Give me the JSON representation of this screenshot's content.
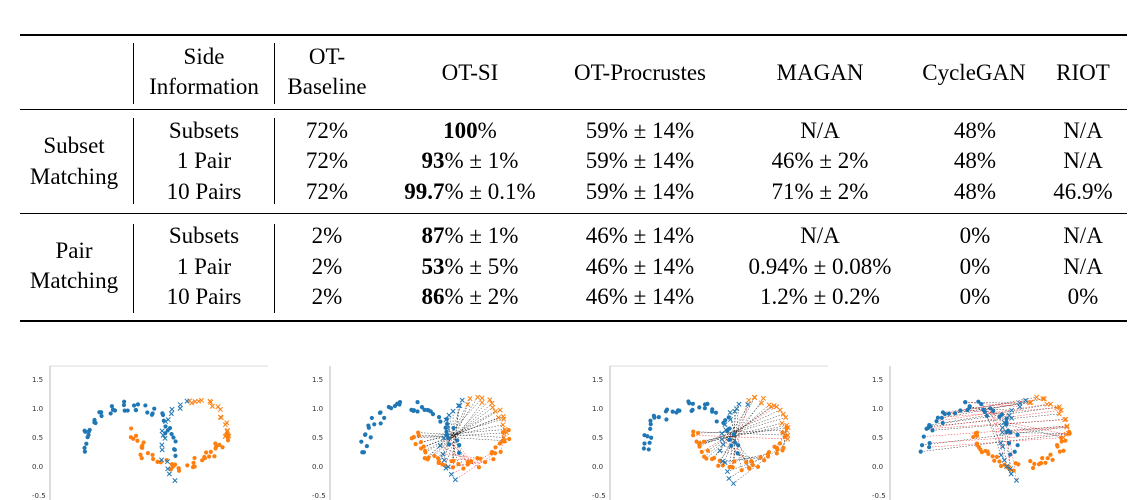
{
  "table": {
    "header": {
      "side_info_line1": "Side",
      "side_info_line2": "Information",
      "ot_baseline_line1": "OT-",
      "ot_baseline_line2": "Baseline",
      "ot_si": "OT-SI",
      "ot_procrustes": "OT-Procrustes",
      "magan": "MAGAN",
      "cyclegan": "CycleGAN",
      "riot": "RIOT"
    },
    "groups": [
      {
        "label_line1": "Subset",
        "label_line2": "Matching",
        "rows": [
          {
            "side": "Subsets",
            "baseline": "72%",
            "otsi_bold": "100",
            "otsi_rest": "%",
            "procrustes": "59% ± 14%",
            "magan": "N/A",
            "cyclegan": "48%",
            "riot": "N/A"
          },
          {
            "side": "1 Pair",
            "baseline": "72%",
            "otsi_bold": "93",
            "otsi_rest": "% ± 1%",
            "procrustes": "59% ± 14%",
            "magan": "46% ± 2%",
            "cyclegan": "48%",
            "riot": "N/A"
          },
          {
            "side": "10 Pairs",
            "baseline": "72%",
            "otsi_bold": "99.7",
            "otsi_rest": "% ± 0.1%",
            "procrustes": "59% ± 14%",
            "magan": "71% ± 2%",
            "cyclegan": "48%",
            "riot": "46.9%"
          }
        ]
      },
      {
        "label_line1": "Pair",
        "label_line2": "Matching",
        "rows": [
          {
            "side": "Subsets",
            "baseline": "2%",
            "otsi_bold": "87",
            "otsi_rest": "% ± 1%",
            "procrustes": "46% ± 14%",
            "magan": "N/A",
            "cyclegan": "0%",
            "riot": "N/A"
          },
          {
            "side": "1 Pair",
            "baseline": "2%",
            "otsi_bold": "53",
            "otsi_rest": "% ± 5%",
            "procrustes": "46% ± 14%",
            "magan": "0.94% ± 0.08%",
            "cyclegan": "0%",
            "riot": "N/A"
          },
          {
            "side": "10 Pairs",
            "baseline": "2%",
            "otsi_bold": "86",
            "otsi_rest": "% ± 2%",
            "procrustes": "46% ± 14%",
            "magan": "1.2% ± 0.2%",
            "cyclegan": "0%",
            "riot": "0%"
          }
        ]
      }
    ]
  },
  "plots": {
    "y_ticks": [
      "1.5",
      "1.0",
      "0.5",
      "0.0",
      "-0.5"
    ],
    "colors": {
      "source": "#1f77b4",
      "target": "#ff7f0e",
      "correct_line": "#000000",
      "wrong_line": "#ff0000"
    }
  }
}
